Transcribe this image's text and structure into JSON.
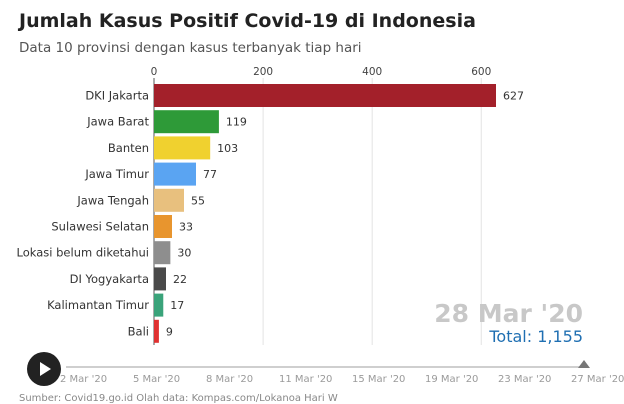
{
  "title": "Jumlah Kasus Positif Covid-19 di Indonesia",
  "subtitle": "Data 10 provinsi dengan kasus terbanyak tiap hari",
  "current_date": "28 Mar '20",
  "total_label": "Total: 1,155",
  "timeline_dates": [
    "2 Mar '20",
    "5 Mar '20",
    "8 Mar '20",
    "11 Mar '20",
    "15 Mar '20",
    "19 Mar '20",
    "23 Mar '20",
    "27 Mar '20"
  ],
  "source_text": "Sumber: Covid19.go.id   Olah data: Kompas.com/Lokanoa Hari W",
  "icons": {
    "play": "play-icon"
  },
  "chart_data": {
    "type": "bar",
    "orientation": "horizontal",
    "categories": [
      "DKI Jakarta",
      "Jawa Barat",
      "Banten",
      "Jawa Timur",
      "Jawa Tengah",
      "Sulawesi Selatan",
      "Lokasi belum diketahui",
      "DI Yogyakarta",
      "Kalimantan Timur",
      "Bali"
    ],
    "values": [
      627,
      119,
      103,
      77,
      55,
      33,
      30,
      22,
      17,
      9
    ],
    "colors": [
      "#a3202a",
      "#2e9a38",
      "#f0d12f",
      "#5aa4f2",
      "#e8c07e",
      "#e8952e",
      "#8e8e8e",
      "#4a4a4a",
      "#3aa37a",
      "#e03131"
    ],
    "xaxis_ticks": [
      0,
      200,
      400,
      600
    ],
    "xlim": [
      0,
      627
    ],
    "grid": true,
    "axis_position": "top"
  }
}
